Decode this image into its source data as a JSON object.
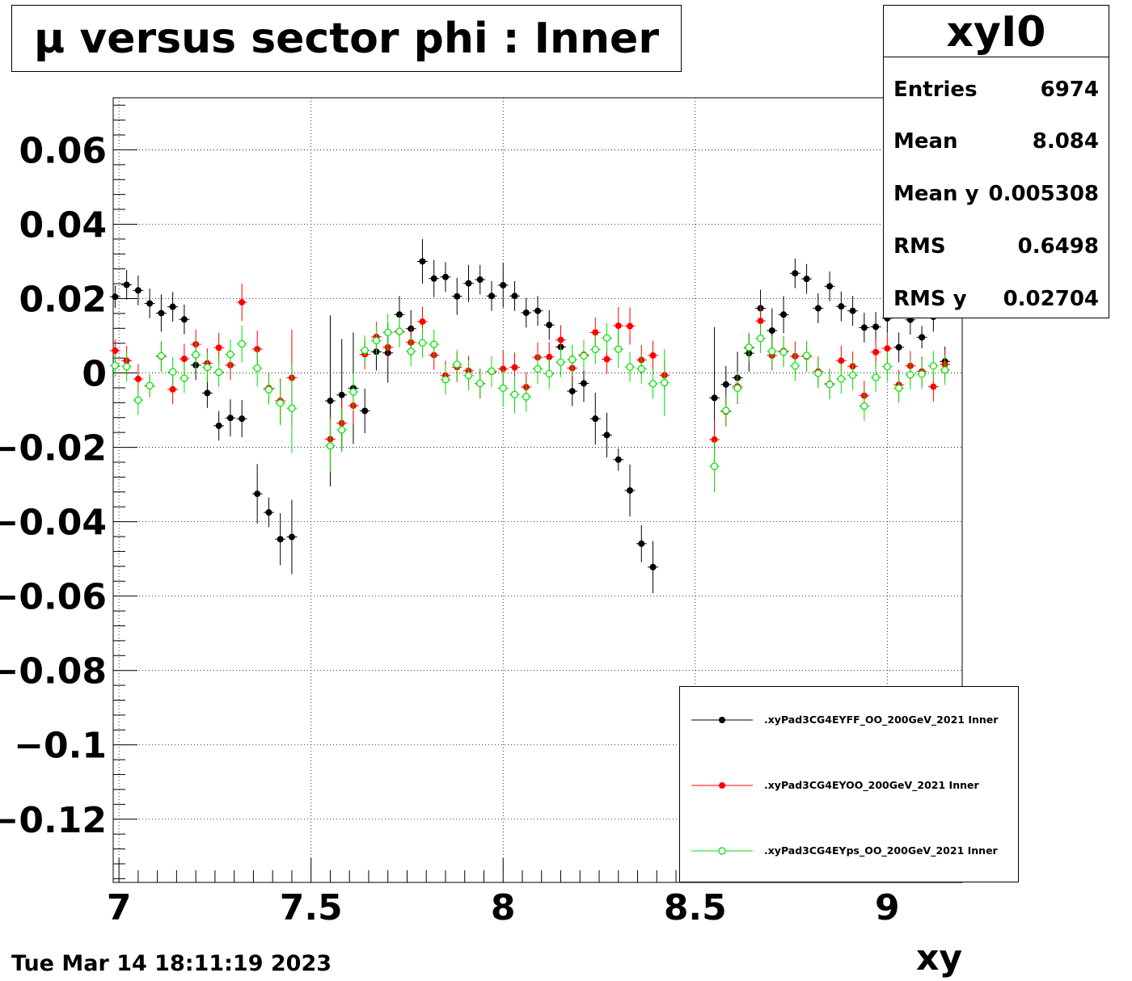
{
  "chart_data": {
    "type": "scatter",
    "title": "μ versus sector phi : Inner",
    "xlabel": "xy",
    "ylabel": "",
    "xlim": [
      6.985,
      9.195
    ],
    "ylim": [
      -0.137,
      0.074
    ],
    "x_ticks": [
      7,
      7.5,
      8,
      8.5,
      9
    ],
    "x_tick_labels": [
      "7",
      "7.5",
      "8",
      "8.5",
      "9"
    ],
    "y_ticks": [
      0.06,
      0.04,
      0.02,
      0,
      -0.02,
      -0.04,
      -0.06,
      -0.08,
      -0.1,
      -0.12
    ],
    "y_tick_labels": [
      "0.06",
      "0.04",
      "0.02",
      "0",
      "−0.02",
      "−0.04",
      "−0.06",
      "−0.08",
      "−0.1",
      "−0.12"
    ],
    "grid": true,
    "legend_position": "bottom-right",
    "series": [
      {
        "name": ".xyPad3CG4EYFF_OO_200GeV_2021 Inner",
        "color": "#000000",
        "marker": "filled-circle",
        "points": [
          [
            6.99,
            0.0205,
            0.003
          ],
          [
            7.02,
            0.0237,
            0.004
          ],
          [
            7.05,
            0.0222,
            0.004
          ],
          [
            7.08,
            0.0187,
            0.004
          ],
          [
            7.11,
            0.0161,
            0.005
          ],
          [
            7.14,
            0.0178,
            0.004
          ],
          [
            7.17,
            0.0144,
            0.004
          ],
          [
            7.2,
            0.0021,
            0.004
          ],
          [
            7.23,
            -0.0054,
            0.004
          ],
          [
            7.26,
            -0.0142,
            0.004
          ],
          [
            7.29,
            -0.0121,
            0.005
          ],
          [
            7.32,
            -0.0123,
            0.005
          ],
          [
            7.36,
            -0.0325,
            0.008
          ],
          [
            7.39,
            -0.0375,
            0.004
          ],
          [
            7.42,
            -0.0447,
            0.007
          ],
          [
            7.45,
            -0.0441,
            0.01
          ],
          [
            7.55,
            -0.0075,
            0.023
          ],
          [
            7.58,
            -0.0059,
            0.015
          ],
          [
            7.61,
            -0.0041,
            0.015
          ],
          [
            7.64,
            -0.0102,
            0.006
          ],
          [
            7.67,
            0.0057,
            0.005
          ],
          [
            7.7,
            0.0054,
            0.008
          ],
          [
            7.73,
            0.0157,
            0.005
          ],
          [
            7.76,
            0.0119,
            0.005
          ],
          [
            7.79,
            0.03,
            0.006
          ],
          [
            7.82,
            0.0254,
            0.005
          ],
          [
            7.85,
            0.0258,
            0.004
          ],
          [
            7.88,
            0.0206,
            0.005
          ],
          [
            7.91,
            0.0241,
            0.005
          ],
          [
            7.94,
            0.0251,
            0.004
          ],
          [
            7.97,
            0.0207,
            0.004
          ],
          [
            8.0,
            0.0236,
            0.006
          ],
          [
            8.03,
            0.0207,
            0.004
          ],
          [
            8.06,
            0.0162,
            0.004
          ],
          [
            8.09,
            0.0167,
            0.004
          ],
          [
            8.12,
            0.0129,
            0.004
          ],
          [
            8.15,
            0.007,
            0.004
          ],
          [
            8.18,
            -0.0049,
            0.004
          ],
          [
            8.21,
            -0.0028,
            0.005
          ],
          [
            8.24,
            -0.0123,
            0.007
          ],
          [
            8.27,
            -0.0167,
            0.006
          ],
          [
            8.3,
            -0.0233,
            0.003
          ],
          [
            8.33,
            -0.0316,
            0.007
          ],
          [
            8.36,
            -0.0459,
            0.005
          ],
          [
            8.39,
            -0.0522,
            0.007
          ],
          [
            8.55,
            -0.0067,
            0.019
          ],
          [
            8.58,
            -0.0031,
            0.005
          ],
          [
            8.61,
            -0.0013,
            0.007
          ],
          [
            8.64,
            0.0053,
            0.005
          ],
          [
            8.67,
            0.0174,
            0.005
          ],
          [
            8.7,
            0.0114,
            0.006
          ],
          [
            8.73,
            0.0157,
            0.005
          ],
          [
            8.76,
            0.0268,
            0.004
          ],
          [
            8.79,
            0.0253,
            0.004
          ],
          [
            8.82,
            0.0174,
            0.004
          ],
          [
            8.85,
            0.0233,
            0.004
          ],
          [
            8.88,
            0.0179,
            0.004
          ],
          [
            8.91,
            0.0167,
            0.004
          ],
          [
            8.94,
            0.0122,
            0.004
          ],
          [
            8.97,
            0.0124,
            0.004
          ],
          [
            9.0,
            0.0147,
            0.004
          ],
          [
            9.03,
            0.0069,
            0.004
          ],
          [
            9.06,
            0.0143,
            0.004
          ],
          [
            9.09,
            0.0096,
            0.003
          ],
          [
            9.12,
            0.0151,
            0.004
          ],
          [
            9.15,
            0.0031,
            0.004
          ]
        ]
      },
      {
        "name": ".xyPad3CG4EYOO_200GeV_2021 Inner",
        "color": "#ff0000",
        "marker": "filled-circle",
        "points": [
          [
            6.99,
            0.006,
            0.003
          ],
          [
            7.02,
            0.0033,
            0.004
          ],
          [
            7.05,
            -0.0016,
            0.004
          ],
          [
            7.08,
            -0.0035,
            0.003
          ],
          [
            7.11,
            0.0044,
            0.004
          ],
          [
            7.14,
            -0.0044,
            0.004
          ],
          [
            7.17,
            0.0038,
            0.004
          ],
          [
            7.2,
            0.0077,
            0.004
          ],
          [
            7.23,
            0.0026,
            0.004
          ],
          [
            7.26,
            0.0068,
            0.004
          ],
          [
            7.29,
            0.0021,
            0.004
          ],
          [
            7.32,
            0.019,
            0.005
          ],
          [
            7.36,
            0.0064,
            0.005
          ],
          [
            7.39,
            -0.0041,
            0.004
          ],
          [
            7.42,
            -0.0075,
            0.006
          ],
          [
            7.45,
            -0.0013,
            0.013
          ],
          [
            7.55,
            -0.0178,
            0.006
          ],
          [
            7.58,
            -0.0135,
            0.006
          ],
          [
            7.61,
            -0.0088,
            0.005
          ],
          [
            7.64,
            0.005,
            0.004
          ],
          [
            7.67,
            0.0097,
            0.004
          ],
          [
            7.7,
            0.0069,
            0.004
          ],
          [
            7.73,
            0.011,
            0.004
          ],
          [
            7.76,
            0.0082,
            0.004
          ],
          [
            7.79,
            0.0138,
            0.004
          ],
          [
            7.82,
            0.0048,
            0.004
          ],
          [
            7.85,
            -0.0007,
            0.004
          ],
          [
            7.88,
            0.0016,
            0.004
          ],
          [
            7.91,
            0.0006,
            0.004
          ],
          [
            7.94,
            -0.0029,
            0.004
          ],
          [
            7.97,
            0.0003,
            0.004
          ],
          [
            8.0,
            0.0011,
            0.005
          ],
          [
            8.03,
            0.0015,
            0.004
          ],
          [
            8.06,
            -0.0038,
            0.004
          ],
          [
            8.09,
            0.0042,
            0.004
          ],
          [
            8.12,
            0.0043,
            0.004
          ],
          [
            8.15,
            0.0089,
            0.004
          ],
          [
            8.18,
            0.0013,
            0.004
          ],
          [
            8.21,
            0.0049,
            0.004
          ],
          [
            8.24,
            0.0109,
            0.004
          ],
          [
            8.27,
            0.0037,
            0.004
          ],
          [
            8.3,
            0.0127,
            0.005
          ],
          [
            8.33,
            0.0126,
            0.005
          ],
          [
            8.36,
            0.0035,
            0.004
          ],
          [
            8.39,
            0.0047,
            0.004
          ],
          [
            8.42,
            -0.0006,
            0.004
          ],
          [
            8.55,
            -0.0179,
            0.005
          ],
          [
            8.58,
            -0.0104,
            0.004
          ],
          [
            8.61,
            -0.0036,
            0.004
          ],
          [
            8.64,
            0.0067,
            0.004
          ],
          [
            8.67,
            0.014,
            0.004
          ],
          [
            8.7,
            0.0047,
            0.004
          ],
          [
            8.73,
            0.0059,
            0.004
          ],
          [
            8.76,
            0.0045,
            0.004
          ],
          [
            8.79,
            0.0044,
            0.004
          ],
          [
            8.82,
            0.0004,
            0.004
          ],
          [
            8.85,
            -0.0029,
            0.004
          ],
          [
            8.88,
            0.0033,
            0.004
          ],
          [
            8.91,
            0.0018,
            0.004
          ],
          [
            8.94,
            -0.0061,
            0.004
          ],
          [
            8.97,
            0.0056,
            0.004
          ],
          [
            9.0,
            0.0066,
            0.004
          ],
          [
            9.03,
            -0.0032,
            0.004
          ],
          [
            9.06,
            0.0019,
            0.004
          ],
          [
            9.09,
            0.0004,
            0.004
          ],
          [
            9.12,
            -0.0037,
            0.004
          ],
          [
            9.15,
            0.0023,
            0.004
          ]
        ]
      },
      {
        "name": ".xyPad3CG4EYps_OO_200GeV_2021 Inner",
        "color": "#00e000",
        "marker": "open-circle",
        "points": [
          [
            6.99,
            0.002,
            0.003
          ],
          [
            7.02,
            0.0017,
            0.004
          ],
          [
            7.05,
            -0.0073,
            0.004
          ],
          [
            7.08,
            -0.0034,
            0.003
          ],
          [
            7.11,
            0.0046,
            0.004
          ],
          [
            7.14,
            0.0003,
            0.004
          ],
          [
            7.17,
            -0.0014,
            0.004
          ],
          [
            7.2,
            0.0049,
            0.004
          ],
          [
            7.23,
            0.0015,
            0.004
          ],
          [
            7.26,
            0.0002,
            0.004
          ],
          [
            7.29,
            0.005,
            0.004
          ],
          [
            7.32,
            0.0078,
            0.005
          ],
          [
            7.36,
            0.0013,
            0.005
          ],
          [
            7.39,
            -0.0045,
            0.004
          ],
          [
            7.42,
            -0.0081,
            0.006
          ],
          [
            7.45,
            -0.0095,
            0.012
          ],
          [
            7.55,
            -0.0196,
            0.007
          ],
          [
            7.58,
            -0.0153,
            0.006
          ],
          [
            7.61,
            -0.0051,
            0.005
          ],
          [
            7.64,
            0.0061,
            0.004
          ],
          [
            7.67,
            0.0087,
            0.004
          ],
          [
            7.7,
            0.0109,
            0.005
          ],
          [
            7.73,
            0.0112,
            0.004
          ],
          [
            7.76,
            0.0058,
            0.004
          ],
          [
            7.79,
            0.0081,
            0.004
          ],
          [
            7.82,
            0.0077,
            0.004
          ],
          [
            7.85,
            -0.0018,
            0.004
          ],
          [
            7.88,
            0.0023,
            0.004
          ],
          [
            7.91,
            -0.0007,
            0.004
          ],
          [
            7.94,
            -0.0028,
            0.004
          ],
          [
            7.97,
            0.0005,
            0.004
          ],
          [
            8.0,
            -0.0041,
            0.005
          ],
          [
            8.03,
            -0.0058,
            0.005
          ],
          [
            8.06,
            -0.0064,
            0.004
          ],
          [
            8.09,
            0.0011,
            0.004
          ],
          [
            8.12,
            -0.0002,
            0.004
          ],
          [
            8.15,
            0.0029,
            0.004
          ],
          [
            8.18,
            0.0036,
            0.004
          ],
          [
            8.21,
            0.0046,
            0.004
          ],
          [
            8.24,
            0.0063,
            0.004
          ],
          [
            8.27,
            0.0094,
            0.004
          ],
          [
            8.3,
            0.0064,
            0.005
          ],
          [
            8.33,
            0.0016,
            0.004
          ],
          [
            8.36,
            0.0011,
            0.004
          ],
          [
            8.39,
            -0.0029,
            0.004
          ],
          [
            8.42,
            -0.0026,
            0.009
          ],
          [
            8.55,
            -0.0251,
            0.007
          ],
          [
            8.58,
            -0.0101,
            0.004
          ],
          [
            8.61,
            -0.0041,
            0.004
          ],
          [
            8.64,
            0.0069,
            0.004
          ],
          [
            8.67,
            0.0093,
            0.004
          ],
          [
            8.7,
            0.0058,
            0.004
          ],
          [
            8.73,
            0.0056,
            0.004
          ],
          [
            8.76,
            0.0019,
            0.004
          ],
          [
            8.79,
            0.0047,
            0.004
          ],
          [
            8.82,
            -0.0001,
            0.004
          ],
          [
            8.85,
            -0.0031,
            0.004
          ],
          [
            8.88,
            -0.0016,
            0.004
          ],
          [
            8.91,
            -0.0006,
            0.004
          ],
          [
            8.94,
            -0.0089,
            0.004
          ],
          [
            8.97,
            -0.0012,
            0.004
          ],
          [
            9.0,
            0.0017,
            0.004
          ],
          [
            9.03,
            -0.0041,
            0.004
          ],
          [
            9.06,
            -0.0005,
            0.004
          ],
          [
            9.09,
            -0.0003,
            0.004
          ],
          [
            9.12,
            0.0019,
            0.004
          ],
          [
            9.15,
            0.0008,
            0.004
          ]
        ]
      }
    ]
  },
  "stats": {
    "name": "xyI0",
    "rows": [
      {
        "label": "Entries",
        "value": "6974"
      },
      {
        "label": "Mean",
        "value": "8.084"
      },
      {
        "label": "Mean y",
        "value": "0.005308"
      },
      {
        "label": "RMS",
        "value": "0.6498"
      },
      {
        "label": "RMS y",
        "value": "0.02704"
      }
    ]
  },
  "datestamp": "Tue Mar 14 18:11:19 2023"
}
